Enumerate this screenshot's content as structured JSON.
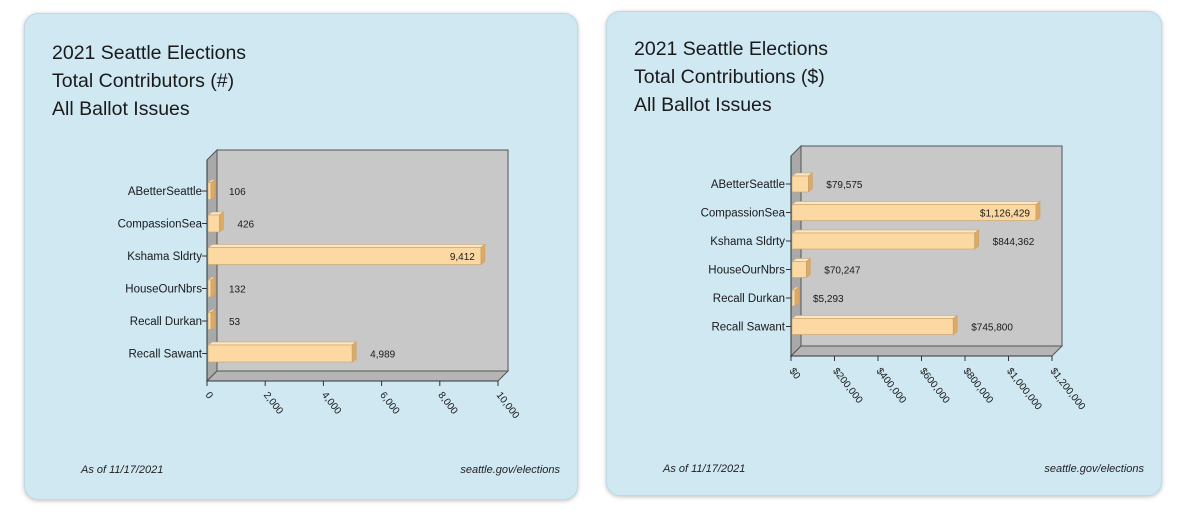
{
  "chart_data": [
    {
      "type": "bar",
      "orientation": "horizontal",
      "title_lines": [
        "2021 Seattle Elections",
        "Total Contributors (#)",
        "All Ballot Issues"
      ],
      "categories": [
        "ABetterSeattle",
        "CompassionSea",
        "Kshama Sldrty",
        "HouseOurNbrs",
        "Recall Durkan",
        "Recall Sawant"
      ],
      "values": [
        106,
        426,
        9412,
        132,
        53,
        4989
      ],
      "value_labels": [
        "106",
        "426",
        "9,412",
        "132",
        "53",
        "4,989"
      ],
      "xlim": [
        0,
        10000
      ],
      "x_ticks": [
        0,
        2000,
        4000,
        6000,
        8000,
        10000
      ],
      "x_tick_labels": [
        "0",
        "2,000",
        "4,000",
        "6,000",
        "8,000",
        "10,000"
      ],
      "footer_left": "As of 11/17/2021",
      "footer_right": "seattle.gov/elections",
      "grid": false,
      "legend": "none"
    },
    {
      "type": "bar",
      "orientation": "horizontal",
      "title_lines": [
        "2021 Seattle Elections",
        "Total Contributions ($)",
        "All Ballot Issues"
      ],
      "categories": [
        "ABetterSeattle",
        "CompassionSea",
        "Kshama Sldrty",
        "HouseOurNbrs",
        "Recall Durkan",
        "Recall Sawant"
      ],
      "values": [
        79575,
        1126429,
        844362,
        70247,
        5293,
        745800
      ],
      "value_labels": [
        "$79,575",
        "$1,126,429",
        "$844,362",
        "$70,247",
        "$5,293",
        "$745,800"
      ],
      "xlim": [
        0,
        1200000
      ],
      "x_ticks": [
        0,
        200000,
        400000,
        600000,
        800000,
        1000000,
        1200000
      ],
      "x_tick_labels": [
        "$0",
        "$200,000",
        "$400,000",
        "$600,000",
        "$800,000",
        "$1,000,000",
        "$1,200,000"
      ],
      "footer_left": "As of 11/17/2021",
      "footer_right": "seattle.gov/elections",
      "grid": false,
      "legend": "none"
    }
  ],
  "colors": {
    "panel_bg": "#cfe8f2",
    "plot_bg": "#c8c8c8",
    "bar_fill": "#fcd9a3",
    "bar_edge": "#c9a16a"
  }
}
